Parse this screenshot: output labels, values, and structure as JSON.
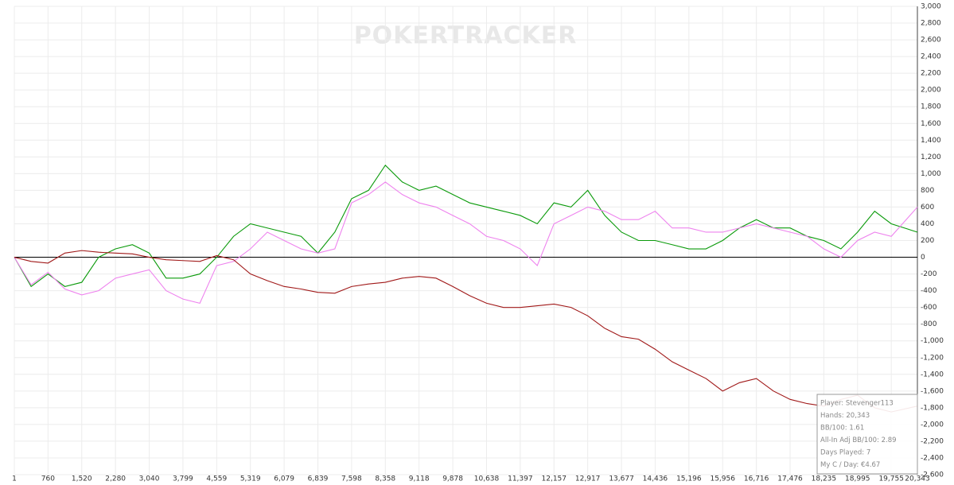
{
  "chart_data": {
    "type": "line",
    "watermark": "POKERTRACKER",
    "x": [
      1,
      380,
      760,
      1140,
      1520,
      1900,
      2280,
      2660,
      3040,
      3420,
      3799,
      4180,
      4559,
      4940,
      5319,
      5700,
      6079,
      6460,
      6839,
      7220,
      7598,
      7980,
      8358,
      8740,
      9118,
      9500,
      9878,
      10258,
      10638,
      11020,
      11397,
      11780,
      12157,
      12540,
      12917,
      13300,
      13677,
      14060,
      14436,
      14820,
      15196,
      15580,
      15956,
      16336,
      16716,
      17100,
      17476,
      17860,
      18235,
      18620,
      18995,
      19380,
      19755,
      20343
    ],
    "series": [
      {
        "color": "#0a9a0a",
        "values": [
          0,
          -350,
          -200,
          -350,
          -300,
          0,
          100,
          150,
          50,
          -250,
          -250,
          -200,
          0,
          250,
          400,
          350,
          300,
          250,
          50,
          300,
          700,
          800,
          1100,
          900,
          800,
          850,
          750,
          650,
          600,
          550,
          500,
          400,
          650,
          600,
          800,
          500,
          300,
          200,
          200,
          150,
          100,
          100,
          200,
          350,
          450,
          350,
          350,
          250,
          200,
          100,
          300,
          550,
          400,
          300
        ]
      },
      {
        "color": "#ee82ee",
        "values": [
          0,
          -330,
          -180,
          -380,
          -450,
          -400,
          -250,
          -200,
          -150,
          -400,
          -500,
          -550,
          -100,
          -50,
          100,
          300,
          200,
          100,
          50,
          100,
          650,
          750,
          900,
          750,
          650,
          600,
          500,
          400,
          250,
          200,
          100,
          -100,
          400,
          500,
          600,
          550,
          450,
          450,
          550,
          350,
          350,
          300,
          300,
          350,
          400,
          350,
          300,
          250,
          100,
          0,
          200,
          300,
          250,
          600
        ]
      },
      {
        "color": "#a01818",
        "values": [
          0,
          -50,
          -70,
          50,
          80,
          60,
          50,
          40,
          0,
          -30,
          -40,
          -50,
          20,
          -30,
          -200,
          -280,
          -350,
          -380,
          -420,
          -430,
          -350,
          -320,
          -300,
          -250,
          -230,
          -250,
          -350,
          -460,
          -550,
          -600,
          -600,
          -580,
          -560,
          -600,
          -700,
          -850,
          -950,
          -980,
          -1100,
          -1250,
          -1350,
          -1450,
          -1600,
          -1500,
          -1450,
          -1600,
          -1700,
          -1750,
          -1780,
          -1700,
          -1650,
          -1800,
          -1850,
          -1780
        ]
      }
    ],
    "xlim": [
      1,
      20343
    ],
    "xticks": [
      1,
      760,
      {
        "value": 1520,
        "label": "1,520"
      },
      {
        "value": 2280,
        "label": "2,280"
      },
      {
        "value": 3040,
        "label": "3,040"
      },
      {
        "value": 3799,
        "label": "3,799"
      },
      {
        "value": 4559,
        "label": "4,559"
      },
      {
        "value": 5319,
        "label": "5,319"
      },
      {
        "value": 6079,
        "label": "6,079"
      },
      {
        "value": 6839,
        "label": "6,839"
      },
      {
        "value": 7598,
        "label": "7,598"
      },
      {
        "value": 8358,
        "label": "8,358"
      },
      {
        "value": 9118,
        "label": "9,118"
      },
      {
        "value": 9878,
        "label": "9,878"
      },
      {
        "value": 10638,
        "label": "10,638"
      },
      {
        "value": 11397,
        "label": "11,397"
      },
      {
        "value": 12157,
        "label": "12,157"
      },
      {
        "value": 12917,
        "label": "12,917"
      },
      {
        "value": 13677,
        "label": "13,677"
      },
      {
        "value": 14436,
        "label": "14,436"
      },
      {
        "value": 15196,
        "label": "15,196"
      },
      {
        "value": 15956,
        "label": "15,956"
      },
      {
        "value": 16716,
        "label": "16,716"
      },
      {
        "value": 17476,
        "label": "17,476"
      },
      {
        "value": 18235,
        "label": "18,235"
      },
      {
        "value": 18995,
        "label": "18,995"
      },
      {
        "value": 19755,
        "label": "19,755"
      },
      {
        "value": 20343,
        "label": "20,343"
      }
    ],
    "ylim": [
      -2600,
      3000
    ],
    "yticks": [
      {
        "value": -2600,
        "label": "-2,600"
      },
      {
        "value": -2400,
        "label": "-2,400"
      },
      {
        "value": -2200,
        "label": "-2,200"
      },
      {
        "value": -2000,
        "label": "-2,000"
      },
      {
        "value": -1800,
        "label": "-1,800"
      },
      {
        "value": -1600,
        "label": "-1,600"
      },
      {
        "value": -1400,
        "label": "-1,400"
      },
      {
        "value": -1200,
        "label": "-1,200"
      },
      {
        "value": -1000,
        "label": "-1,000"
      },
      -800,
      -600,
      -400,
      -200,
      0,
      200,
      400,
      600,
      800,
      {
        "value": 1000,
        "label": "1,000"
      },
      {
        "value": 1200,
        "label": "1,200"
      },
      {
        "value": 1400,
        "label": "1,400"
      },
      {
        "value": 1600,
        "label": "1,600"
      },
      {
        "value": 1800,
        "label": "1,800"
      },
      {
        "value": 2000,
        "label": "2,000"
      },
      {
        "value": 2200,
        "label": "2,200"
      },
      {
        "value": 2400,
        "label": "2,400"
      },
      {
        "value": 2600,
        "label": "2,600"
      },
      {
        "value": 2800,
        "label": "2,800"
      },
      {
        "value": 3000,
        "label": "3,000"
      }
    ],
    "grid": true,
    "info_box": [
      "Player: Stevenger113",
      "Hands: 20,343",
      "BB/100: 1.61",
      "All-In Adj BB/100: 2.89",
      "Days Played: 7",
      "My C / Day: €4.67"
    ]
  }
}
